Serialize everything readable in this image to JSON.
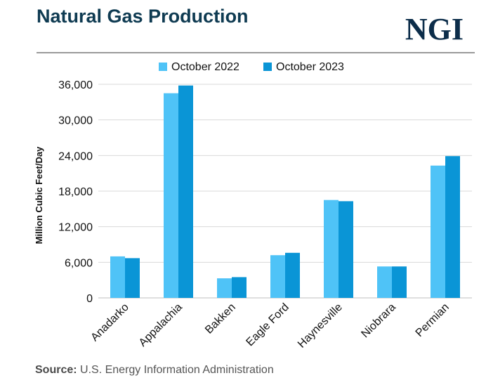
{
  "header": {
    "title": "Natural Gas Production",
    "brand": "NGI"
  },
  "footer": {
    "source_label": "Source:",
    "source_text": "U.S. Energy Information Administration"
  },
  "colors": {
    "series_1": "#4fc3f7",
    "series_2": "#0a95d6",
    "title": "#0f3b52",
    "gridline": "#d9d9d9"
  },
  "chart_data": {
    "type": "bar",
    "title": "Natural Gas Production",
    "xlabel": "",
    "ylabel": "Million Cubic Feet/Day",
    "categories": [
      "Anadarko",
      "Appalachia",
      "Bakken",
      "Eagle Ford",
      "Haynesville",
      "Niobrara",
      "Permian"
    ],
    "series": [
      {
        "name": "October 2022",
        "values": [
          7000,
          34500,
          3300,
          7200,
          16500,
          5300,
          22300
        ]
      },
      {
        "name": "October 2023",
        "values": [
          6700,
          35800,
          3500,
          7600,
          16300,
          5300,
          23900
        ]
      }
    ],
    "ylim": [
      0,
      36000
    ],
    "yticks": [
      0,
      6000,
      12000,
      18000,
      24000,
      30000,
      36000
    ],
    "ytick_labels": [
      "0",
      "6,000",
      "12,000",
      "18,000",
      "24,000",
      "30,000",
      "36,000"
    ],
    "grid": true,
    "legend_position": "top-center"
  }
}
